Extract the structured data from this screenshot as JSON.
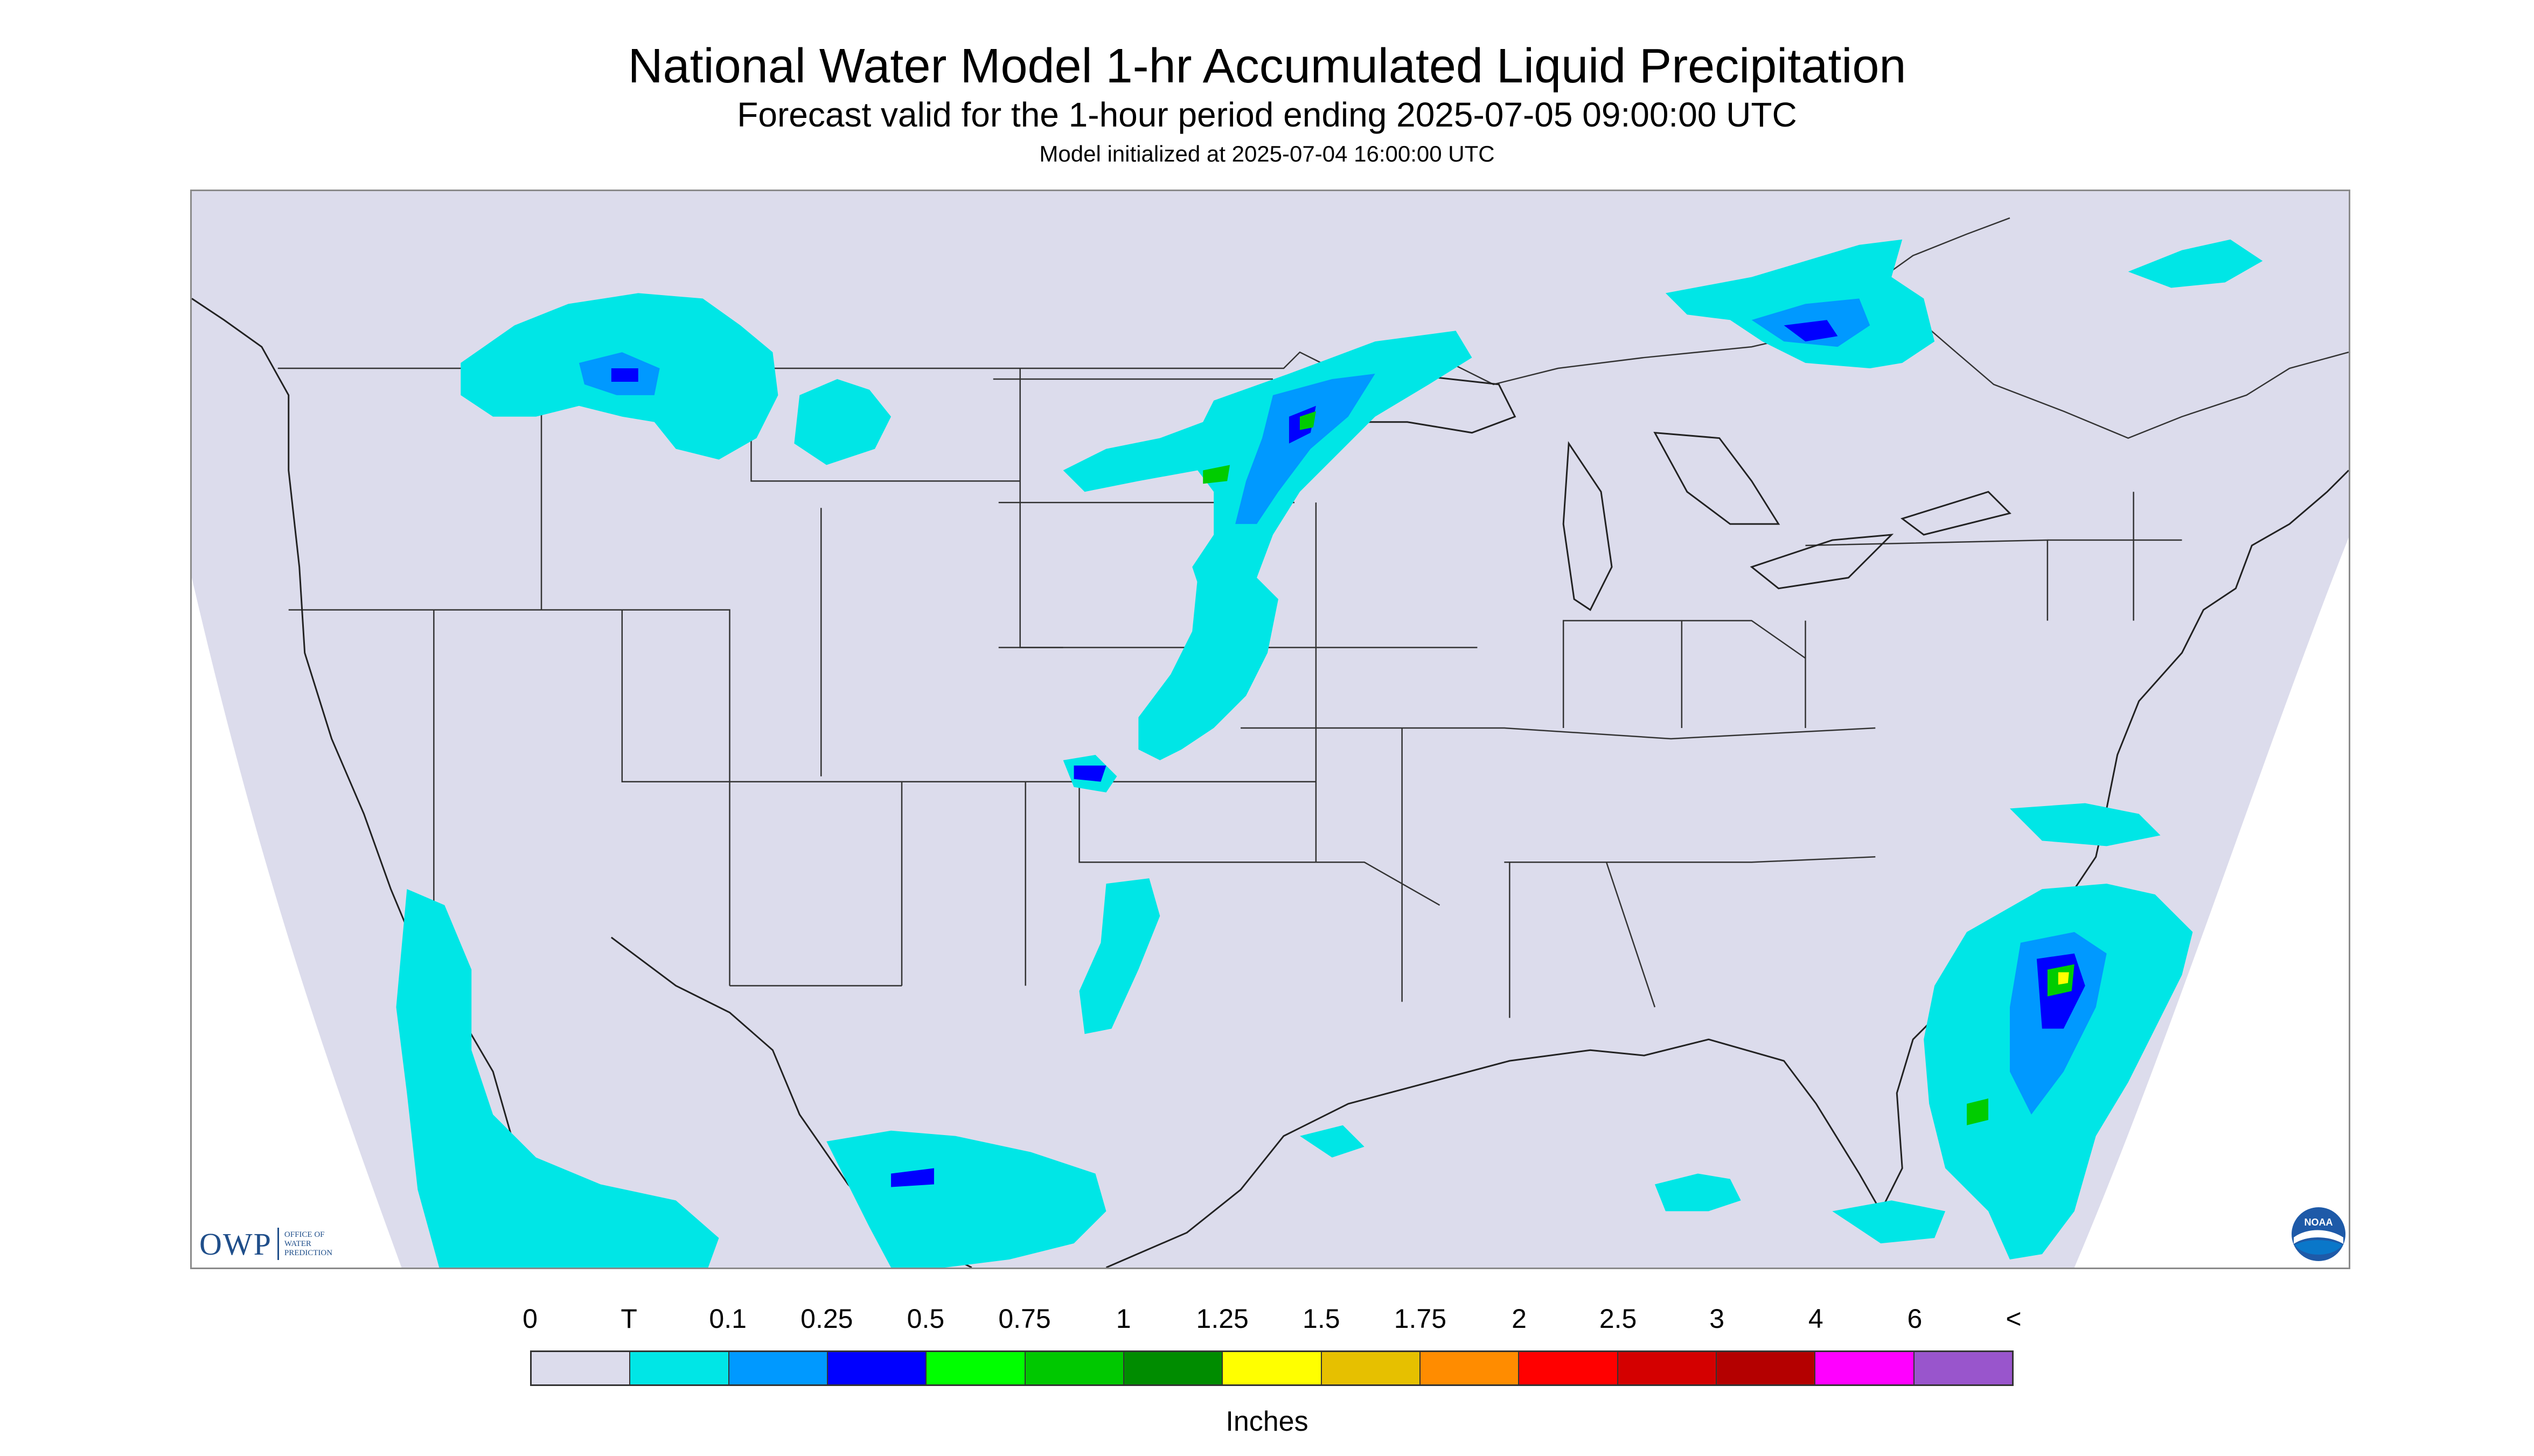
{
  "title": "National Water Model 1-hr Accumulated Liquid Precipitation",
  "subtitle": "Forecast valid for the 1-hour period ending 2025-07-05 09:00:00 UTC",
  "init_line": "Model initialized at 2025-07-04 16:00:00 UTC",
  "map": {
    "background_color": "#dcdcec",
    "outside_domain_color": "#ffffff",
    "boundary_color": "#333333",
    "precip_colors": {
      "trace": "#00e6e6",
      "light": "#0099ff",
      "moderate": "#0000ff",
      "heavy": "#00cc00",
      "very_heavy": "#ffff00",
      "extreme": "#ff0000"
    }
  },
  "logos": {
    "owp_text": "OWP",
    "owp_sub": [
      "OFFICE OF",
      "WATER",
      "PREDICTION"
    ],
    "noaa_text": "NOAA",
    "owp_icon": "owp-logo",
    "noaa_icon": "noaa-logo"
  },
  "legend": {
    "labels": [
      "0",
      "T",
      "0.1",
      "0.25",
      "0.5",
      "0.75",
      "1",
      "1.25",
      "1.5",
      "1.75",
      "2",
      "2.5",
      "3",
      "4",
      "6",
      "<"
    ],
    "colors": [
      "#dcdcec",
      "#00e6e6",
      "#0099ff",
      "#0000ff",
      "#00ff00",
      "#00c800",
      "#008c00",
      "#ffff00",
      "#e6c000",
      "#ff8c00",
      "#ff0000",
      "#d40000",
      "#b40000",
      "#ff00ff",
      "#9955cc"
    ],
    "units": "Inches"
  }
}
